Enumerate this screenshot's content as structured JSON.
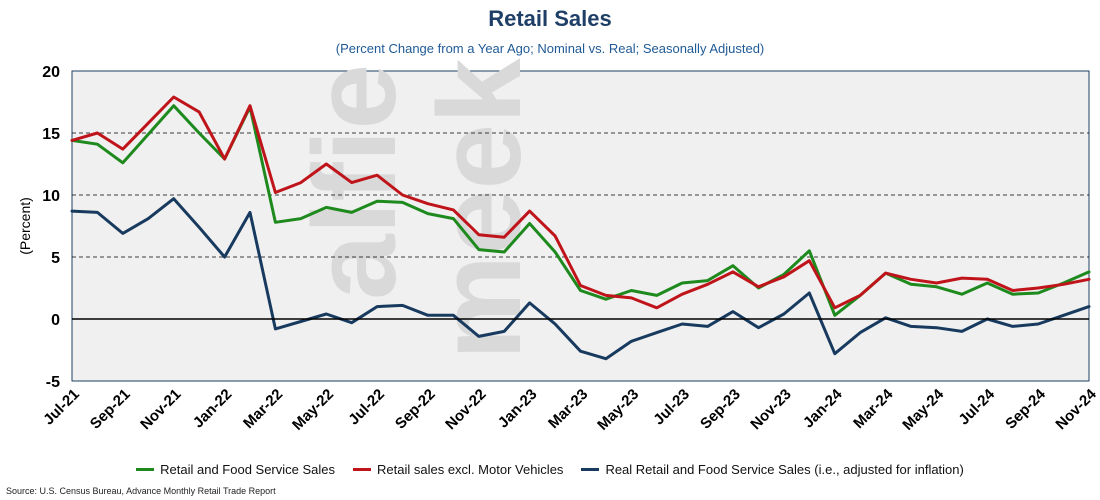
{
  "chart_data": {
    "type": "line",
    "title": "Retail Sales",
    "subtitle": "(Percent Change from a Year Ago; Nominal vs. Real; Seasonally Adjusted)",
    "ylabel": "(Percent)",
    "ylim": [
      -5,
      20
    ],
    "yticks": [
      -5,
      0,
      5,
      10,
      15,
      20
    ],
    "grid": "horizontal dashed",
    "legend_position": "bottom",
    "x": [
      "Jul-21",
      "Aug-21",
      "Sep-21",
      "Oct-21",
      "Nov-21",
      "Dec-21",
      "Jan-22",
      "Feb-22",
      "Mar-22",
      "Apr-22",
      "May-22",
      "Jun-22",
      "Jul-22",
      "Aug-22",
      "Sep-22",
      "Oct-22",
      "Nov-22",
      "Dec-22",
      "Jan-23",
      "Feb-23",
      "Mar-23",
      "Apr-23",
      "May-23",
      "Jun-23",
      "Jul-23",
      "Aug-23",
      "Sep-23",
      "Oct-23",
      "Nov-23",
      "Dec-23",
      "Jan-24",
      "Feb-24",
      "Mar-24",
      "Apr-24",
      "May-24",
      "Jun-24",
      "Jul-24",
      "Aug-24",
      "Sep-24",
      "Oct-24",
      "Nov-24"
    ],
    "xtick_labels": [
      "Jul-21",
      "Sep-21",
      "Nov-21",
      "Jan-22",
      "Mar-22",
      "May-22",
      "Jul-22",
      "Sep-22",
      "Nov-22",
      "Jan-23",
      "Mar-23",
      "May-23",
      "Jul-23",
      "Sep-23",
      "Nov-23",
      "Jan-24",
      "Mar-24",
      "May-24",
      "Jul-24",
      "Sep-24",
      "Nov-24"
    ],
    "series": [
      {
        "name": "Retail and Food Service Sales",
        "color": "#1e8a1e",
        "values": [
          14.4,
          14.1,
          12.6,
          14.9,
          17.2,
          15.0,
          12.9,
          17.1,
          7.8,
          8.1,
          9.0,
          8.6,
          9.5,
          9.4,
          8.5,
          8.1,
          5.6,
          5.4,
          7.7,
          5.4,
          2.3,
          1.6,
          2.3,
          1.9,
          2.9,
          3.1,
          4.3,
          2.5,
          3.6,
          5.5,
          0.3,
          1.9,
          3.7,
          2.8,
          2.6,
          2.0,
          2.9,
          2.0,
          2.1,
          2.9,
          3.8
        ]
      },
      {
        "name": "Retail sales excl. Motor Vehicles",
        "color": "#c0141b",
        "values": [
          14.4,
          15.0,
          13.7,
          15.8,
          17.9,
          16.7,
          12.9,
          17.2,
          10.2,
          11.0,
          12.5,
          11.0,
          11.6,
          10.0,
          9.3,
          8.8,
          6.8,
          6.6,
          8.7,
          6.7,
          2.7,
          1.9,
          1.7,
          0.9,
          2.0,
          2.8,
          3.8,
          2.6,
          3.4,
          4.7,
          0.9,
          1.9,
          3.7,
          3.2,
          2.9,
          3.3,
          3.2,
          2.3,
          2.5,
          2.8,
          3.2
        ]
      },
      {
        "name": "Real Retail and Food Service Sales (i.e., adjusted for inflation)",
        "color": "#173a5e",
        "values": [
          8.7,
          8.6,
          6.9,
          8.1,
          9.7,
          7.4,
          5.0,
          8.6,
          -0.8,
          -0.2,
          0.4,
          -0.3,
          1.0,
          1.1,
          0.3,
          0.3,
          -1.4,
          -1.0,
          1.3,
          -0.4,
          -2.6,
          -3.2,
          -1.8,
          -1.1,
          -0.4,
          -0.6,
          0.6,
          -0.7,
          0.4,
          2.1,
          -2.8,
          -1.1,
          0.1,
          -0.6,
          -0.7,
          -1.0,
          0.0,
          -0.6,
          -0.4,
          0.3,
          1.0
        ]
      }
    ],
    "source": "Source: U.S. Census Bureau, Advance Monthly Retail Trade Report",
    "watermark": "alfie meek"
  }
}
